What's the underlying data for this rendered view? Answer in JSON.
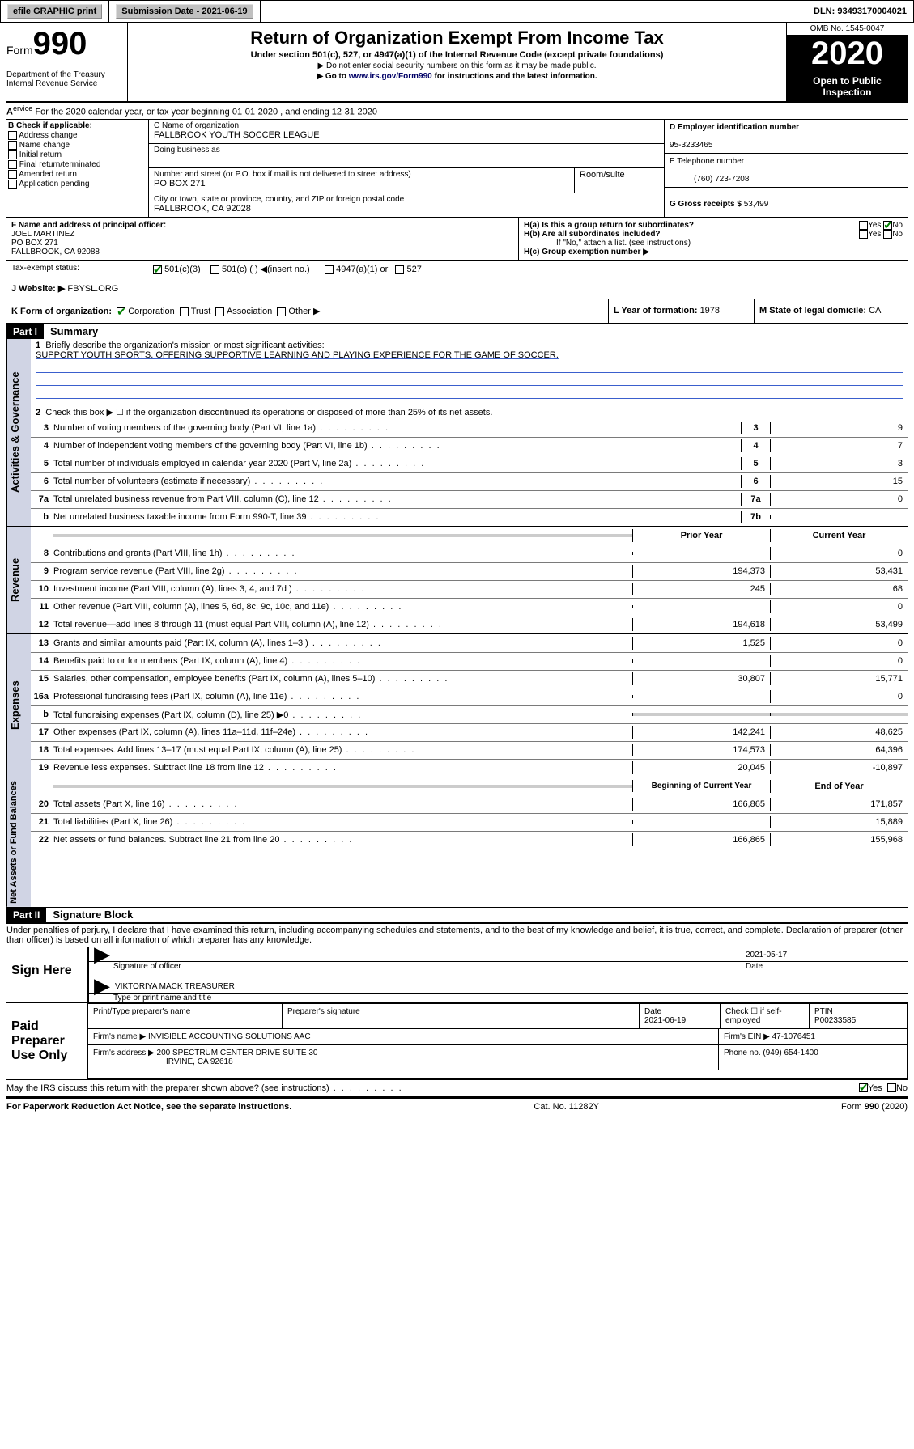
{
  "topbar": {
    "efile": "efile GRAPHIC print",
    "sub_label": "Submission Date - ",
    "sub_date": "2021-06-19",
    "dln_label": "DLN: ",
    "dln": "93493170004021"
  },
  "header": {
    "form_label": "Form",
    "form_num": "990",
    "dept": "Department of the Treasury\nInternal Revenue Service",
    "title": "Return of Organization Exempt From Income Tax",
    "sub1": "Under section 501(c), 527, or 4947(a)(1) of the Internal Revenue Code (except private foundations)",
    "sub2": "▶ Do not enter social security numbers on this form as it may be made public.",
    "sub3_pre": "▶ Go to ",
    "sub3_link": "www.irs.gov/Form990",
    "sub3_post": " for instructions and the latest information.",
    "omb": "OMB No. 1545-0047",
    "year": "2020",
    "open": "Open to Public Inspection"
  },
  "lineA": "For the 2020 calendar year, or tax year beginning 01-01-2020    , and ending 12-31-2020",
  "b": {
    "hdr": "B Check if applicable:",
    "items": [
      "Address change",
      "Name change",
      "Initial return",
      "Final return/terminated",
      "Amended return",
      "Application pending"
    ]
  },
  "c": {
    "name_lbl": "C Name of organization",
    "name": "FALLBROOK YOUTH SOCCER LEAGUE",
    "dba_lbl": "Doing business as",
    "dba": "",
    "addr_lbl": "Number and street (or P.O. box if mail is not delivered to street address)",
    "room_lbl": "Room/suite",
    "addr": "PO BOX 271",
    "city_lbl": "City or town, state or province, country, and ZIP or foreign postal code",
    "city": "FALLBROOK, CA  92028"
  },
  "d": {
    "lbl": "D Employer identification number",
    "val": "95-3233465"
  },
  "e": {
    "lbl": "E Telephone number",
    "val": "(760) 723-7208"
  },
  "g": {
    "lbl": "G Gross receipts $ ",
    "val": "53,499"
  },
  "f": {
    "lbl": "F  Name and address of principal officer:",
    "name": "JOEL MARTINEZ",
    "addr1": "PO BOX 271",
    "addr2": "FALLBROOK, CA  92088"
  },
  "h": {
    "a": "H(a)  Is this a group return for subordinates?",
    "b": "H(b)  Are all subordinates included?",
    "bnote": "If \"No,\" attach a list. (see instructions)",
    "c": "H(c)  Group exemption number ▶"
  },
  "tax": {
    "lbl": "Tax-exempt status:",
    "o1": "501(c)(3)",
    "o2": "501(c) (  ) ◀(insert no.)",
    "o3": "4947(a)(1) or",
    "o4": "527"
  },
  "j": {
    "lbl": "J   Website: ▶",
    "val": " FBYSL.ORG"
  },
  "k": {
    "lbl": "K Form of organization:",
    "opts": [
      "Corporation",
      "Trust",
      "Association",
      "Other ▶"
    ],
    "l_lbl": "L Year of formation: ",
    "l_val": "1978",
    "m_lbl": "M State of legal domicile: ",
    "m_val": "CA"
  },
  "part1": {
    "hdr": "Part I",
    "title": "Summary"
  },
  "gov": {
    "label": "Activities & Governance",
    "l1": "Briefly describe the organization's mission or most significant activities:",
    "l1v": "SUPPORT YOUTH SPORTS. OFFERING SUPPORTIVE LEARNING AND PLAYING EXPERIENCE FOR THE GAME OF SOCCER.",
    "l2": "Check this box ▶ ☐  if the organization discontinued its operations or disposed of more than 25% of its net assets.",
    "rows": [
      {
        "n": "3",
        "d": "Number of voting members of the governing body (Part VI, line 1a)",
        "b": "3",
        "v": "9"
      },
      {
        "n": "4",
        "d": "Number of independent voting members of the governing body (Part VI, line 1b)",
        "b": "4",
        "v": "7"
      },
      {
        "n": "5",
        "d": "Total number of individuals employed in calendar year 2020 (Part V, line 2a)",
        "b": "5",
        "v": "3"
      },
      {
        "n": "6",
        "d": "Total number of volunteers (estimate if necessary)",
        "b": "6",
        "v": "15"
      },
      {
        "n": "7a",
        "d": "Total unrelated business revenue from Part VIII, column (C), line 12",
        "b": "7a",
        "v": "0"
      },
      {
        "n": "b",
        "d": "Net unrelated business taxable income from Form 990-T, line 39",
        "b": "7b",
        "v": ""
      }
    ]
  },
  "rev": {
    "label": "Revenue",
    "hdr1": "Prior Year",
    "hdr2": "Current Year",
    "rows": [
      {
        "n": "8",
        "d": "Contributions and grants (Part VIII, line 1h)",
        "p": "",
        "c": "0"
      },
      {
        "n": "9",
        "d": "Program service revenue (Part VIII, line 2g)",
        "p": "194,373",
        "c": "53,431"
      },
      {
        "n": "10",
        "d": "Investment income (Part VIII, column (A), lines 3, 4, and 7d )",
        "p": "245",
        "c": "68"
      },
      {
        "n": "11",
        "d": "Other revenue (Part VIII, column (A), lines 5, 6d, 8c, 9c, 10c, and 11e)",
        "p": "",
        "c": "0"
      },
      {
        "n": "12",
        "d": "Total revenue—add lines 8 through 11 (must equal Part VIII, column (A), line 12)",
        "p": "194,618",
        "c": "53,499"
      }
    ]
  },
  "exp": {
    "label": "Expenses",
    "rows": [
      {
        "n": "13",
        "d": "Grants and similar amounts paid (Part IX, column (A), lines 1–3 )",
        "p": "1,525",
        "c": "0"
      },
      {
        "n": "14",
        "d": "Benefits paid to or for members (Part IX, column (A), line 4)",
        "p": "",
        "c": "0"
      },
      {
        "n": "15",
        "d": "Salaries, other compensation, employee benefits (Part IX, column (A), lines 5–10)",
        "p": "30,807",
        "c": "15,771"
      },
      {
        "n": "16a",
        "d": "Professional fundraising fees (Part IX, column (A), line 11e)",
        "p": "",
        "c": "0"
      },
      {
        "n": "b",
        "d": "Total fundraising expenses (Part IX, column (D), line 25) ▶0",
        "p": "shade",
        "c": "shade"
      },
      {
        "n": "17",
        "d": "Other expenses (Part IX, column (A), lines 11a–11d, 11f–24e)",
        "p": "142,241",
        "c": "48,625"
      },
      {
        "n": "18",
        "d": "Total expenses. Add lines 13–17 (must equal Part IX, column (A), line 25)",
        "p": "174,573",
        "c": "64,396"
      },
      {
        "n": "19",
        "d": "Revenue less expenses. Subtract line 18 from line 12",
        "p": "20,045",
        "c": "-10,897"
      }
    ]
  },
  "net": {
    "label": "Net Assets or Fund Balances",
    "hdr1": "Beginning of Current Year",
    "hdr2": "End of Year",
    "rows": [
      {
        "n": "20",
        "d": "Total assets (Part X, line 16)",
        "p": "166,865",
        "c": "171,857"
      },
      {
        "n": "21",
        "d": "Total liabilities (Part X, line 26)",
        "p": "",
        "c": "15,889"
      },
      {
        "n": "22",
        "d": "Net assets or fund balances. Subtract line 21 from line 20",
        "p": "166,865",
        "c": "155,968"
      }
    ]
  },
  "part2": {
    "hdr": "Part II",
    "title": "Signature Block"
  },
  "perjury": "Under penalties of perjury, I declare that I have examined this return, including accompanying schedules and statements, and to the best of my knowledge and belief, it is true, correct, and complete. Declaration of preparer (other than officer) is based on all information of which preparer has any knowledge.",
  "sign": {
    "here": "Sign Here",
    "date": "2021-05-17",
    "sig_lbl": "Signature of officer",
    "date_lbl": "Date",
    "name": "VIKTORIYA MACK  TREASURER",
    "name_lbl": "Type or print name and title"
  },
  "paid": {
    "here": "Paid Preparer Use Only",
    "r1": {
      "c1": "Print/Type preparer's name",
      "c2": "Preparer's signature",
      "c3l": "Date",
      "c3v": "2021-06-19",
      "c4": "Check ☐  if self-employed",
      "c5l": "PTIN",
      "c5v": "P00233585"
    },
    "r2": {
      "c1": "Firm's name      ▶ ",
      "c1v": "INVISIBLE ACCOUNTING SOLUTIONS AAC",
      "c2": "Firm's EIN ▶ ",
      "c2v": "47-1076451"
    },
    "r3": {
      "c1": "Firm's address ▶ ",
      "c1v": "200 SPECTRUM CENTER DRIVE SUITE 30",
      "c1v2": "IRVINE, CA  92618",
      "c2": "Phone no. ",
      "c2v": "(949) 654-1400"
    }
  },
  "discuss": "May the IRS discuss this return with the preparer shown above? (see instructions)",
  "footer": {
    "l": "For Paperwork Reduction Act Notice, see the separate instructions.",
    "m": "Cat. No. 11282Y",
    "r": "Form 990 (2020)"
  },
  "yes": "Yes",
  "no": "No"
}
